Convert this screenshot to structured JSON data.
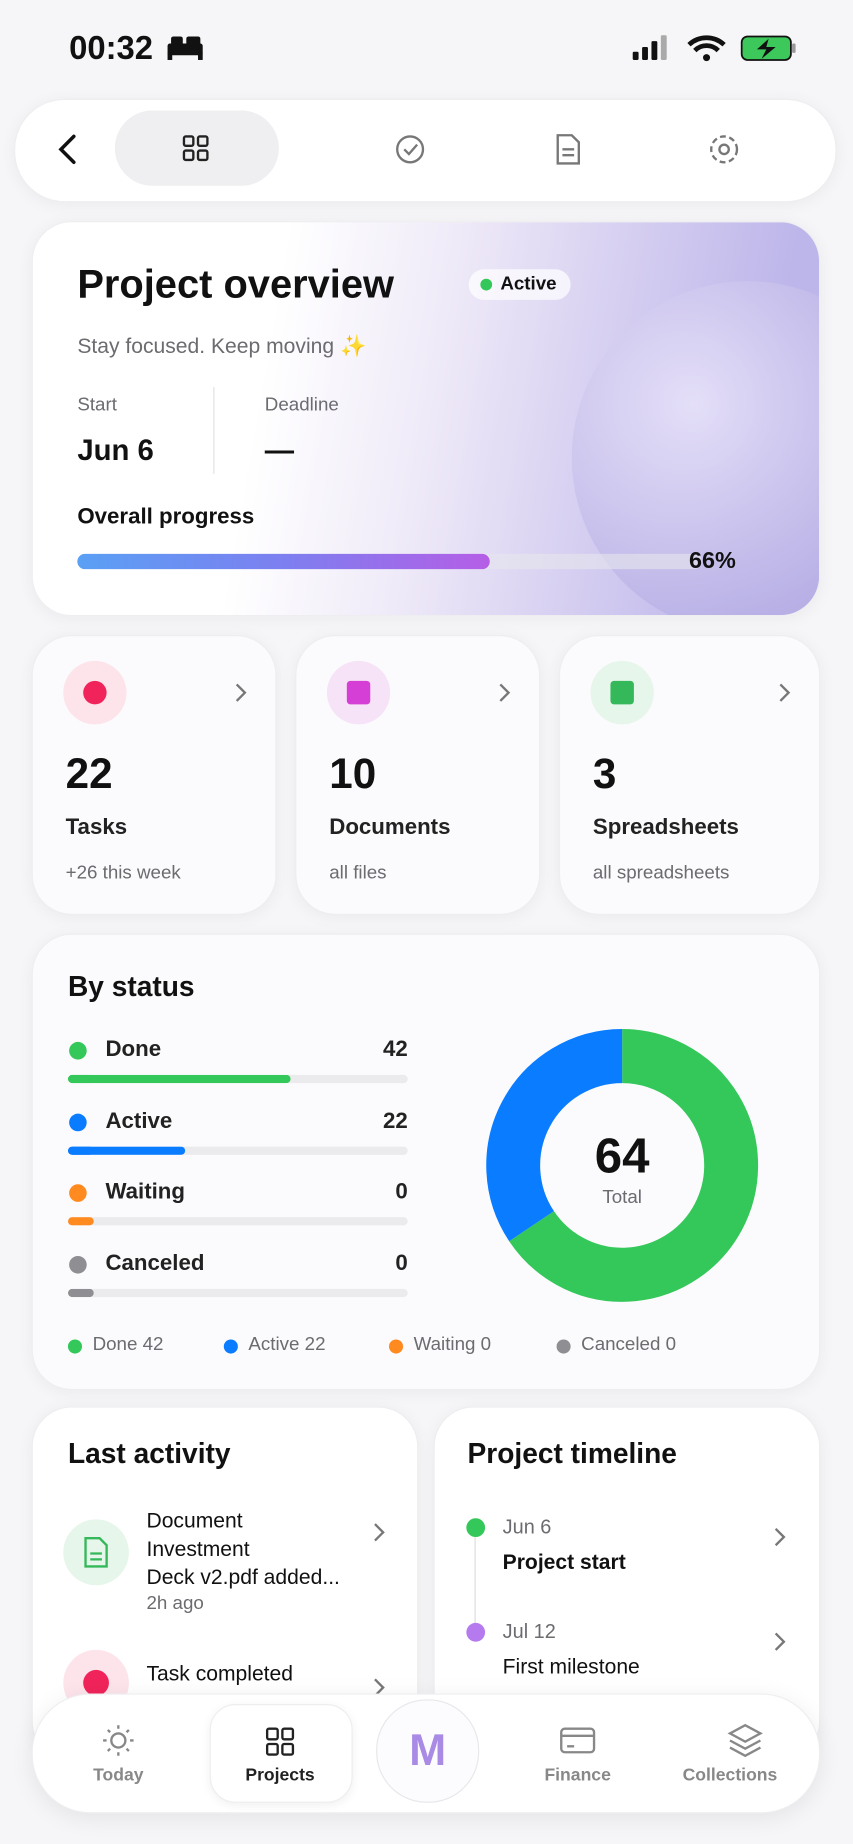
{
  "status_bar": {
    "time": "00:32"
  },
  "overview": {
    "title": "Project overview",
    "badge": "Active",
    "subtitle": "Stay focused. Keep moving ✨",
    "start_label": "Start",
    "start": "Jun 6",
    "deadline_label": "Deadline",
    "deadline": "—",
    "progress_label": "Overall progress",
    "progress": {
      "value": 66,
      "label": "66%"
    }
  },
  "stats": [
    {
      "count": 22,
      "label": "Tasks",
      "sub": "+26 this week"
    },
    {
      "count": 10,
      "label": "Documents",
      "sub": "all files"
    },
    {
      "count": 3,
      "label": "Spreadsheets",
      "sub": "all spreadsheets"
    }
  ],
  "by_status": {
    "title": "By status",
    "total": 64,
    "total_label": "Total",
    "items": [
      {
        "name": "Done",
        "count": 42,
        "color": "#34c759"
      },
      {
        "name": "Active",
        "count": 22,
        "color": "#0a7cff"
      },
      {
        "name": "Waiting",
        "count": 0,
        "color": "#ff8a1f"
      },
      {
        "name": "Canceled",
        "count": 0,
        "color": "#8e8e93"
      }
    ]
  },
  "activity": {
    "title": "Last activity",
    "items": [
      {
        "lines": [
          "Document",
          "Investment",
          "Deck v2.pdf added..."
        ],
        "time": "2h ago"
      },
      {
        "lines": [
          "Task completed"
        ]
      }
    ]
  },
  "timeline": {
    "title": "Project timeline",
    "items": [
      {
        "date": "Jun 6",
        "label": "Project start",
        "color": "#34c759"
      },
      {
        "date": "Jul 12",
        "label": "First milestone",
        "color": "#b57bee"
      }
    ]
  },
  "nav": {
    "items": [
      "Today",
      "Projects",
      "Finance",
      "Collections"
    ],
    "center": "M"
  }
}
